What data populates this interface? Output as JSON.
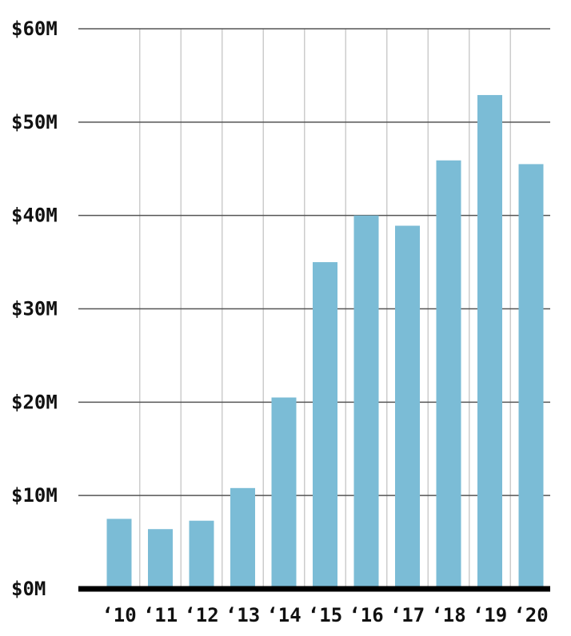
{
  "chart_data": {
    "type": "bar",
    "categories": [
      "‘10",
      "‘11",
      "‘12",
      "‘13",
      "‘14",
      "‘15",
      "‘16",
      "‘17",
      "‘18",
      "‘19",
      "‘20"
    ],
    "values": [
      7.5,
      6.4,
      7.3,
      10.8,
      20.5,
      35.0,
      40.0,
      38.9,
      45.9,
      52.9,
      45.5
    ],
    "ylim": [
      0,
      60
    ],
    "yticks": [
      0,
      10,
      20,
      30,
      40,
      50,
      60
    ],
    "ytick_labels": [
      "$0M",
      "$10M",
      "$20M",
      "$30M",
      "$40M",
      "$50M",
      "$60M"
    ],
    "grid": true,
    "title": "",
    "xlabel": "",
    "ylabel": "",
    "colors": {
      "bar": "#7bbcd6",
      "gridline": "#555555",
      "vgrid": "#cccccc",
      "baseline": "#000000"
    }
  }
}
